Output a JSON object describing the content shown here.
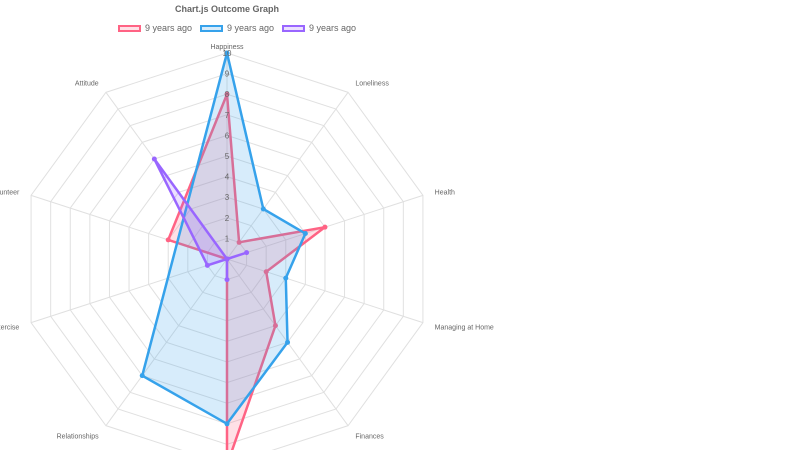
{
  "chart_data": {
    "type": "radar",
    "title": "Chart.js Outcome Graph",
    "categories": [
      "Happiness",
      "Loneliness",
      "Health",
      "Managing at Home",
      "Finances",
      "",
      "Relationships",
      "Exercise",
      "Volunteer",
      "Attitude"
    ],
    "rlim": [
      0,
      10
    ],
    "ticks": [
      "1",
      "2",
      "3",
      "4",
      "5",
      "6",
      "7",
      "8",
      "9",
      "10"
    ],
    "grid": true,
    "legend_position": "top",
    "series": [
      {
        "name": "9 years ago",
        "color": "#ff6384",
        "fill": "rgba(255,99,132,0.2)",
        "values": [
          8,
          1,
          5,
          2,
          4,
          10,
          0,
          0,
          3,
          null
        ]
      },
      {
        "name": "9 years ago",
        "color": "#36a2eb",
        "fill": "rgba(54,162,235,0.2)",
        "values": [
          10,
          3,
          4,
          3,
          5,
          8,
          7,
          null,
          null,
          null
        ]
      },
      {
        "name": "9 years ago",
        "color": "#9966ff",
        "fill": "rgba(153,102,255,0.2)",
        "values": [
          0,
          0,
          1,
          0,
          0,
          1,
          0,
          1,
          null,
          6
        ]
      }
    ]
  }
}
